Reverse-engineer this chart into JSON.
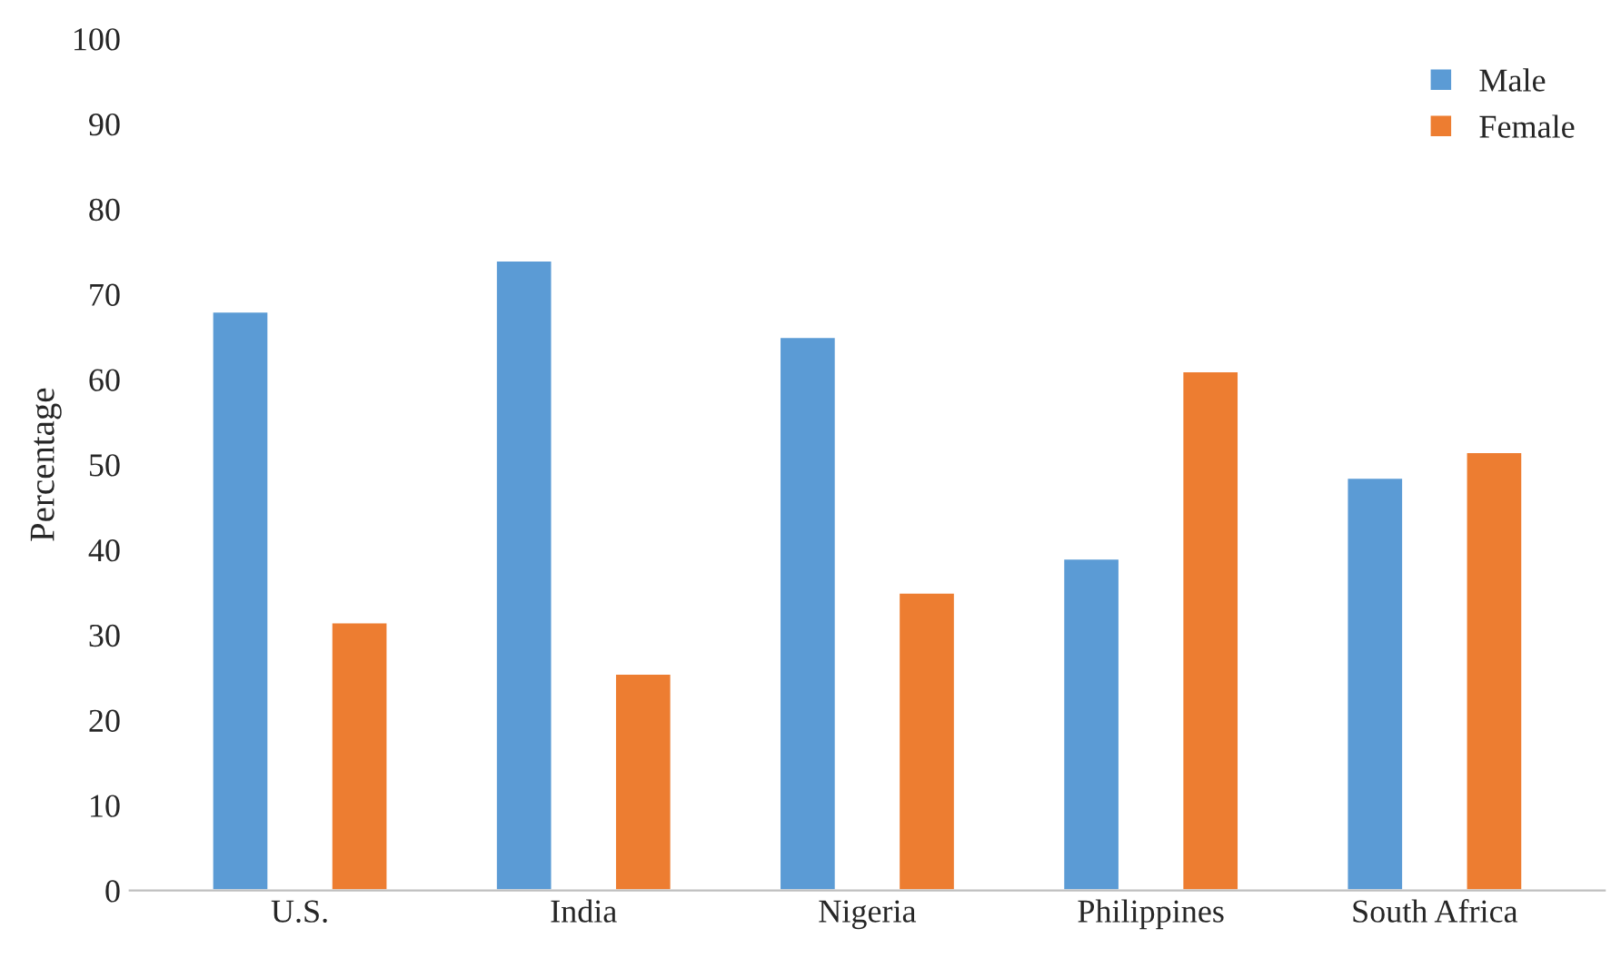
{
  "chart_data": {
    "type": "bar",
    "ylabel": "Percentage",
    "categories": [
      "U.S.",
      "India",
      "Nigeria",
      "Philippines",
      "South Africa"
    ],
    "series": [
      {
        "name": "Male",
        "color": "#5b9bd5",
        "values": [
          68,
          74,
          65,
          39,
          48.5
        ]
      },
      {
        "name": "Female",
        "color": "#ed7d31",
        "values": [
          31.5,
          25.5,
          35,
          61,
          51.5
        ]
      }
    ],
    "ylim": [
      0,
      100
    ],
    "yticks": [
      0,
      10,
      20,
      30,
      40,
      50,
      60,
      70,
      80,
      90,
      100
    ],
    "grid": false,
    "legend": "top right"
  }
}
